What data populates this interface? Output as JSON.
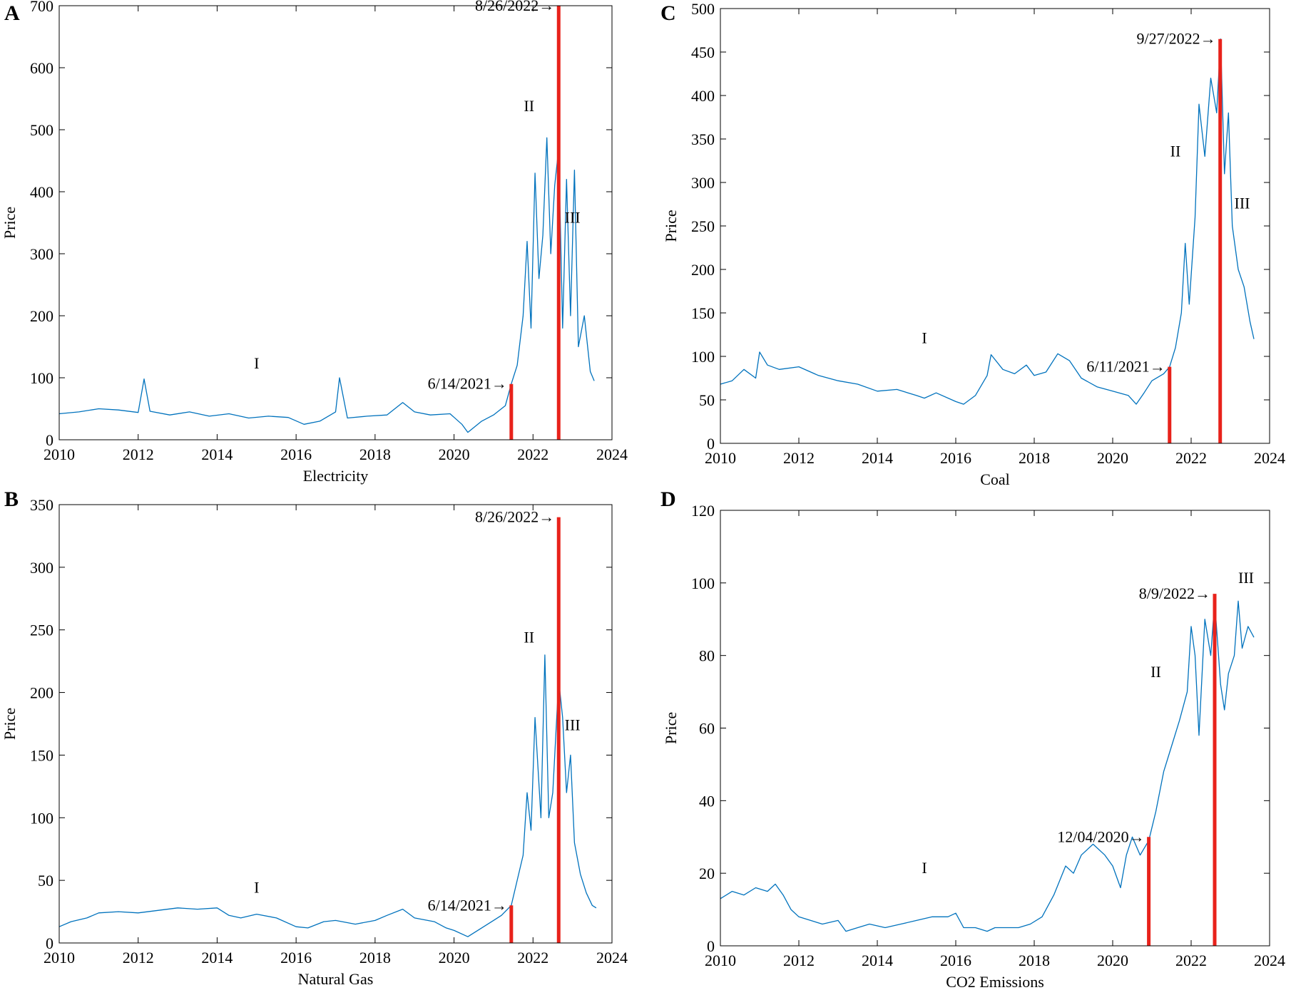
{
  "chart_data": [
    {
      "panel": "A",
      "type": "line",
      "title": "",
      "xlabel": "Electricity",
      "ylabel": "Price",
      "xlim": [
        2010,
        2024
      ],
      "ylim": [
        0,
        700
      ],
      "xticks": [
        2010,
        2012,
        2014,
        2016,
        2018,
        2020,
        2022,
        2024
      ],
      "yticks": [
        0,
        100,
        200,
        300,
        400,
        500,
        600,
        700
      ],
      "series": [
        {
          "name": "Electricity",
          "x": [
            2010.0,
            2010.5,
            2011.0,
            2011.5,
            2012.0,
            2012.15,
            2012.3,
            2012.8,
            2013.3,
            2013.8,
            2014.3,
            2014.8,
            2015.3,
            2015.8,
            2016.2,
            2016.6,
            2017.0,
            2017.1,
            2017.3,
            2017.8,
            2018.3,
            2018.7,
            2019.0,
            2019.4,
            2019.9,
            2020.2,
            2020.35,
            2020.7,
            2021.0,
            2021.3,
            2021.45,
            2021.6,
            2021.75,
            2021.85,
            2021.95,
            2022.05,
            2022.15,
            2022.25,
            2022.35,
            2022.45,
            2022.55,
            2022.65,
            2022.75,
            2022.85,
            2022.95,
            2023.05,
            2023.15,
            2023.3,
            2023.45,
            2023.55
          ],
          "y": [
            42,
            45,
            50,
            48,
            44,
            98,
            46,
            40,
            45,
            38,
            42,
            35,
            38,
            36,
            25,
            30,
            45,
            100,
            35,
            38,
            40,
            60,
            45,
            40,
            42,
            25,
            12,
            30,
            40,
            55,
            90,
            120,
            200,
            320,
            180,
            430,
            260,
            330,
            487,
            300,
            410,
            470,
            180,
            420,
            200,
            435,
            150,
            200,
            110,
            95
          ]
        }
      ],
      "markers": [
        {
          "date": "6/14/2021",
          "x": 2021.45,
          "y": 90,
          "label": "6/14/2021→"
        },
        {
          "date": "8/26/2022",
          "x": 2022.65,
          "y": 700,
          "label": "8/26/2022→"
        }
      ],
      "regions": [
        {
          "label": "I",
          "x": 2015.0,
          "y": 115
        },
        {
          "label": "II",
          "x": 2021.9,
          "y": 530
        },
        {
          "label": "III",
          "x": 2023.0,
          "y": 350
        }
      ]
    },
    {
      "panel": "B",
      "type": "line",
      "title": "",
      "xlabel": "Natural Gas",
      "ylabel": "Price",
      "xlim": [
        2010,
        2024
      ],
      "ylim": [
        0,
        350
      ],
      "xticks": [
        2010,
        2012,
        2014,
        2016,
        2018,
        2020,
        2022,
        2024
      ],
      "yticks": [
        0,
        50,
        100,
        150,
        200,
        250,
        300,
        350
      ],
      "series": [
        {
          "name": "Natural Gas",
          "x": [
            2010.0,
            2010.3,
            2010.7,
            2011.0,
            2011.5,
            2012.0,
            2012.5,
            2013.0,
            2013.5,
            2014.0,
            2014.3,
            2014.6,
            2015.0,
            2015.5,
            2016.0,
            2016.3,
            2016.7,
            2017.0,
            2017.5,
            2018.0,
            2018.3,
            2018.7,
            2019.0,
            2019.5,
            2019.8,
            2020.0,
            2020.35,
            2020.7,
            2021.0,
            2021.2,
            2021.45,
            2021.6,
            2021.75,
            2021.85,
            2021.95,
            2022.05,
            2022.2,
            2022.3,
            2022.4,
            2022.5,
            2022.65,
            2022.75,
            2022.85,
            2022.95,
            2023.05,
            2023.2,
            2023.35,
            2023.5,
            2023.6
          ],
          "y": [
            13,
            17,
            20,
            24,
            25,
            24,
            26,
            28,
            27,
            28,
            22,
            20,
            23,
            20,
            13,
            12,
            17,
            18,
            15,
            18,
            22,
            27,
            20,
            17,
            12,
            10,
            5,
            12,
            18,
            22,
            30,
            50,
            70,
            120,
            90,
            180,
            100,
            230,
            100,
            120,
            210,
            180,
            120,
            150,
            80,
            55,
            40,
            30,
            28
          ]
        }
      ],
      "markers": [
        {
          "date": "6/14/2021",
          "x": 2021.45,
          "y": 30,
          "label": "6/14/2021→"
        },
        {
          "date": "8/26/2022",
          "x": 2022.65,
          "y": 340,
          "label": "8/26/2022→"
        }
      ],
      "regions": [
        {
          "label": "I",
          "x": 2015.0,
          "y": 40
        },
        {
          "label": "II",
          "x": 2021.9,
          "y": 240
        },
        {
          "label": "III",
          "x": 2023.0,
          "y": 170
        }
      ]
    },
    {
      "panel": "C",
      "type": "line",
      "title": "",
      "xlabel": "Coal",
      "ylabel": "Price",
      "xlim": [
        2010,
        2024
      ],
      "ylim": [
        0,
        500
      ],
      "xticks": [
        2010,
        2012,
        2014,
        2016,
        2018,
        2020,
        2022,
        2024
      ],
      "yticks": [
        0,
        50,
        100,
        150,
        200,
        250,
        300,
        350,
        400,
        450,
        500
      ],
      "series": [
        {
          "name": "Coal",
          "x": [
            2010.0,
            2010.3,
            2010.6,
            2010.9,
            2011.0,
            2011.2,
            2011.5,
            2012.0,
            2012.5,
            2013.0,
            2013.5,
            2014.0,
            2014.5,
            2015.0,
            2015.2,
            2015.5,
            2016.0,
            2016.2,
            2016.5,
            2016.8,
            2016.9,
            2017.2,
            2017.5,
            2017.8,
            2018.0,
            2018.3,
            2018.6,
            2018.9,
            2019.2,
            2019.6,
            2020.0,
            2020.4,
            2020.6,
            2020.8,
            2021.0,
            2021.3,
            2021.45,
            2021.6,
            2021.75,
            2021.85,
            2021.95,
            2022.1,
            2022.2,
            2022.35,
            2022.5,
            2022.65,
            2022.75,
            2022.85,
            2022.95,
            2023.05,
            2023.2,
            2023.35,
            2023.5,
            2023.6
          ],
          "y": [
            68,
            72,
            85,
            75,
            105,
            90,
            85,
            88,
            78,
            72,
            68,
            60,
            62,
            55,
            52,
            58,
            48,
            45,
            55,
            78,
            102,
            85,
            80,
            90,
            78,
            82,
            103,
            95,
            75,
            65,
            60,
            55,
            45,
            58,
            72,
            80,
            88,
            110,
            150,
            230,
            160,
            260,
            390,
            330,
            420,
            380,
            465,
            310,
            380,
            250,
            200,
            180,
            140,
            120
          ]
        }
      ],
      "markers": [
        {
          "date": "6/11/2021",
          "x": 2021.45,
          "y": 88,
          "label": "6/11/2021→"
        },
        {
          "date": "9/27/2022",
          "x": 2022.74,
          "y": 465,
          "label": "9/27/2022→"
        }
      ],
      "regions": [
        {
          "label": "I",
          "x": 2015.2,
          "y": 115
        },
        {
          "label": "II",
          "x": 2021.6,
          "y": 330
        },
        {
          "label": "III",
          "x": 2023.3,
          "y": 270
        }
      ]
    },
    {
      "panel": "D",
      "type": "line",
      "title": "",
      "xlabel": "CO2 Emissions",
      "ylabel": "Price",
      "xlim": [
        2010,
        2024
      ],
      "ylim": [
        0,
        120
      ],
      "xticks": [
        2010,
        2012,
        2014,
        2016,
        2018,
        2020,
        2022,
        2024
      ],
      "yticks": [
        0,
        20,
        40,
        60,
        80,
        100,
        120
      ],
      "series": [
        {
          "name": "CO2 Emissions",
          "x": [
            2010.0,
            2010.3,
            2010.6,
            2010.9,
            2011.2,
            2011.4,
            2011.6,
            2011.8,
            2012.0,
            2012.3,
            2012.6,
            2013.0,
            2013.2,
            2013.5,
            2013.8,
            2014.2,
            2014.6,
            2015.0,
            2015.4,
            2015.8,
            2016.0,
            2016.2,
            2016.5,
            2016.8,
            2017.0,
            2017.3,
            2017.6,
            2017.9,
            2018.2,
            2018.5,
            2018.8,
            2019.0,
            2019.2,
            2019.5,
            2019.8,
            2020.0,
            2020.2,
            2020.35,
            2020.5,
            2020.7,
            2020.92,
            2021.1,
            2021.3,
            2021.5,
            2021.7,
            2021.9,
            2022.0,
            2022.1,
            2022.2,
            2022.35,
            2022.5,
            2022.6,
            2022.75,
            2022.85,
            2022.95,
            2023.1,
            2023.2,
            2023.3,
            2023.45,
            2023.6
          ],
          "y": [
            13,
            15,
            14,
            16,
            15,
            17,
            14,
            10,
            8,
            7,
            6,
            7,
            4,
            5,
            6,
            5,
            6,
            7,
            8,
            8,
            9,
            5,
            5,
            4,
            5,
            5,
            5,
            6,
            8,
            14,
            22,
            20,
            25,
            28,
            25,
            22,
            16,
            25,
            30,
            25,
            29,
            37,
            48,
            55,
            62,
            70,
            88,
            80,
            58,
            90,
            80,
            95,
            72,
            65,
            75,
            80,
            95,
            82,
            88,
            85
          ]
        }
      ],
      "markers": [
        {
          "date": "12/04/2020",
          "x": 2020.92,
          "y": 30,
          "label": "12/04/2020→"
        },
        {
          "date": "8/9/2022",
          "x": 2022.6,
          "y": 97,
          "label": "8/9/2022→"
        }
      ],
      "regions": [
        {
          "label": "I",
          "x": 2015.2,
          "y": 20
        },
        {
          "label": "II",
          "x": 2021.1,
          "y": 74
        },
        {
          "label": "III",
          "x": 2023.4,
          "y": 100
        }
      ]
    }
  ],
  "colors": {
    "line": "#0072bd",
    "marker": "#e8221b",
    "text": "#000000"
  }
}
